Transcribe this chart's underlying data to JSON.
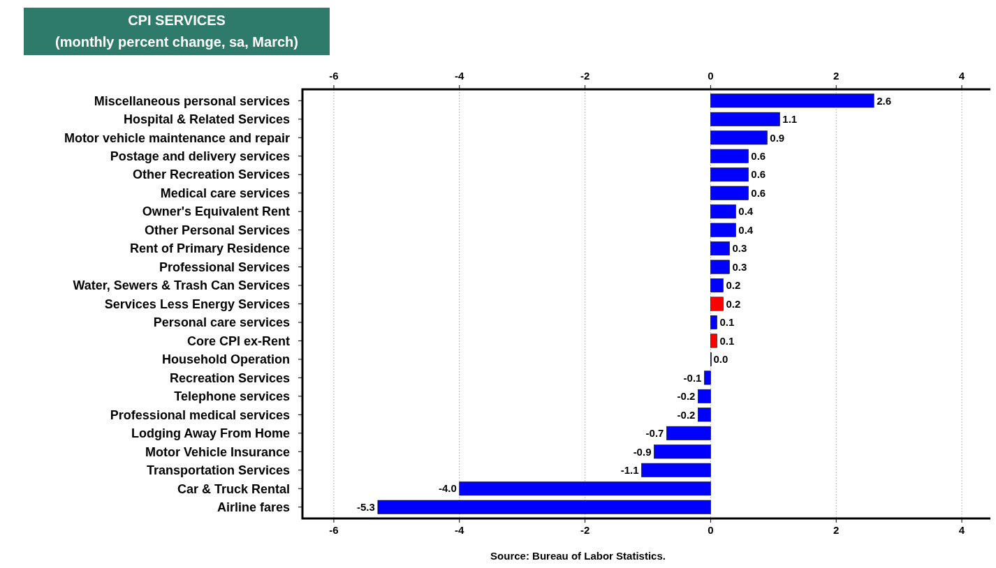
{
  "chart_data": {
    "type": "bar",
    "orientation": "horizontal",
    "title": "CPI SERVICES",
    "subtitle": "(monthly percent change, sa, March)",
    "categories": [
      "Miscellaneous personal services",
      "Hospital & Related Services",
      "Motor vehicle maintenance and repair",
      "Postage and delivery services",
      "Other Recreation Services",
      "Medical care services",
      "Owner's Equivalent Rent",
      "Other Personal Services",
      "Rent of Primary Residence",
      "Professional Services",
      "Water, Sewers & Trash Can Services",
      "Services Less Energy Services",
      "Personal care services",
      "Core CPI ex-Rent",
      "Household Operation",
      "Recreation Services",
      "Telephone services",
      "Professional medical services",
      "Lodging Away From Home",
      "Motor Vehicle Insurance",
      "Transportation Services",
      "Car & Truck Rental",
      "Airline fares"
    ],
    "values": [
      2.6,
      1.1,
      0.9,
      0.6,
      0.6,
      0.6,
      0.4,
      0.4,
      0.3,
      0.3,
      0.2,
      0.2,
      0.1,
      0.1,
      0.0,
      -0.1,
      -0.2,
      -0.2,
      -0.7,
      -0.9,
      -1.1,
      -4.0,
      -5.3
    ],
    "colors": [
      "#0000ff",
      "#0000ff",
      "#0000ff",
      "#0000ff",
      "#0000ff",
      "#0000ff",
      "#0000ff",
      "#0000ff",
      "#0000ff",
      "#0000ff",
      "#0000ff",
      "#ff0000",
      "#0000ff",
      "#ff0000",
      "#0000ff",
      "#0000ff",
      "#0000ff",
      "#0000ff",
      "#0000ff",
      "#0000ff",
      "#0000ff",
      "#0000ff",
      "#0000ff"
    ],
    "xlim": [
      -6.5,
      4.5
    ],
    "xticks": [
      -6,
      -4,
      -2,
      0,
      2,
      4
    ],
    "x2lim": [
      -6.5,
      4.5
    ],
    "x2ticks": [
      -6,
      -4,
      -2,
      0,
      2,
      4
    ],
    "grid": "x",
    "value_labels": [
      "2.6",
      "1.1",
      "0.9",
      "0.6",
      "0.6",
      "0.6",
      "0.4",
      "0.4",
      "0.3",
      "0.3",
      "0.2",
      "0.2",
      "0.1",
      "0.1",
      "0.0",
      "-0.1",
      "-0.2",
      "-0.2",
      "-0.7",
      "-0.9",
      "-1.1",
      "-4.0",
      "-5.3"
    ],
    "annotations": [
      "Source: Bureau of Labor Statistics."
    ]
  }
}
